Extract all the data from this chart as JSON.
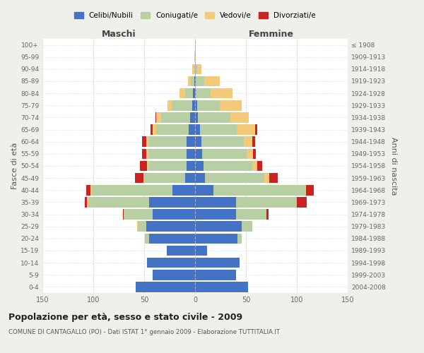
{
  "age_groups": [
    "0-4",
    "5-9",
    "10-14",
    "15-19",
    "20-24",
    "25-29",
    "30-34",
    "35-39",
    "40-44",
    "45-49",
    "50-54",
    "55-59",
    "60-64",
    "65-69",
    "70-74",
    "75-79",
    "80-84",
    "85-89",
    "90-94",
    "95-99",
    "100+"
  ],
  "birth_years": [
    "2004-2008",
    "1999-2003",
    "1994-1998",
    "1989-1993",
    "1984-1988",
    "1979-1983",
    "1974-1978",
    "1969-1973",
    "1964-1968",
    "1959-1963",
    "1954-1958",
    "1949-1953",
    "1944-1948",
    "1939-1943",
    "1934-1938",
    "1929-1933",
    "1924-1928",
    "1919-1923",
    "1914-1918",
    "1909-1913",
    "≤ 1908"
  ],
  "colors": {
    "celibi": "#4472c4",
    "coniugati": "#b8cfa4",
    "vedovi": "#f5c97a",
    "divorziati": "#cc2222"
  },
  "males": {
    "celibi": [
      58,
      42,
      47,
      28,
      45,
      48,
      42,
      45,
      22,
      10,
      8,
      8,
      8,
      6,
      5,
      3,
      2,
      1,
      0,
      0,
      0
    ],
    "coniugati": [
      0,
      0,
      0,
      0,
      4,
      8,
      28,
      60,
      80,
      40,
      38,
      38,
      38,
      32,
      28,
      20,
      8,
      3,
      1,
      0,
      0
    ],
    "vedovi": [
      0,
      0,
      0,
      0,
      0,
      1,
      0,
      1,
      1,
      1,
      1,
      2,
      2,
      4,
      5,
      4,
      5,
      3,
      2,
      1,
      0
    ],
    "divorziati": [
      0,
      0,
      0,
      0,
      0,
      0,
      1,
      2,
      4,
      8,
      7,
      4,
      4,
      2,
      1,
      0,
      0,
      0,
      0,
      0,
      0
    ]
  },
  "females": {
    "nubili": [
      52,
      40,
      44,
      12,
      42,
      46,
      40,
      40,
      18,
      10,
      8,
      7,
      6,
      5,
      3,
      2,
      1,
      1,
      0,
      0,
      0
    ],
    "coniugate": [
      0,
      0,
      0,
      0,
      4,
      10,
      30,
      60,
      90,
      58,
      48,
      44,
      42,
      36,
      32,
      22,
      14,
      8,
      2,
      0,
      0
    ],
    "vedove": [
      0,
      0,
      0,
      0,
      0,
      0,
      0,
      0,
      1,
      5,
      5,
      6,
      8,
      18,
      18,
      22,
      22,
      15,
      4,
      1,
      1
    ],
    "divorziate": [
      0,
      0,
      0,
      0,
      0,
      0,
      2,
      10,
      8,
      8,
      5,
      3,
      3,
      2,
      0,
      0,
      0,
      0,
      0,
      0,
      0
    ]
  },
  "xlim": 150,
  "title": "Popolazione per età, sesso e stato civile - 2009",
  "subtitle": "COMUNE DI CANTAGALLO (PO) - Dati ISTAT 1° gennaio 2009 - Elaborazione TUTTITALIA.IT",
  "xlabel_left": "Maschi",
  "xlabel_right": "Femmine",
  "ylabel_left": "Fasce di età",
  "ylabel_right": "Anni di nascita",
  "legend_labels": [
    "Celibi/Nubili",
    "Coniugati/e",
    "Vedovi/e",
    "Divorziati/e"
  ],
  "background_color": "#f0f0eb",
  "plot_bg": "#ffffff"
}
